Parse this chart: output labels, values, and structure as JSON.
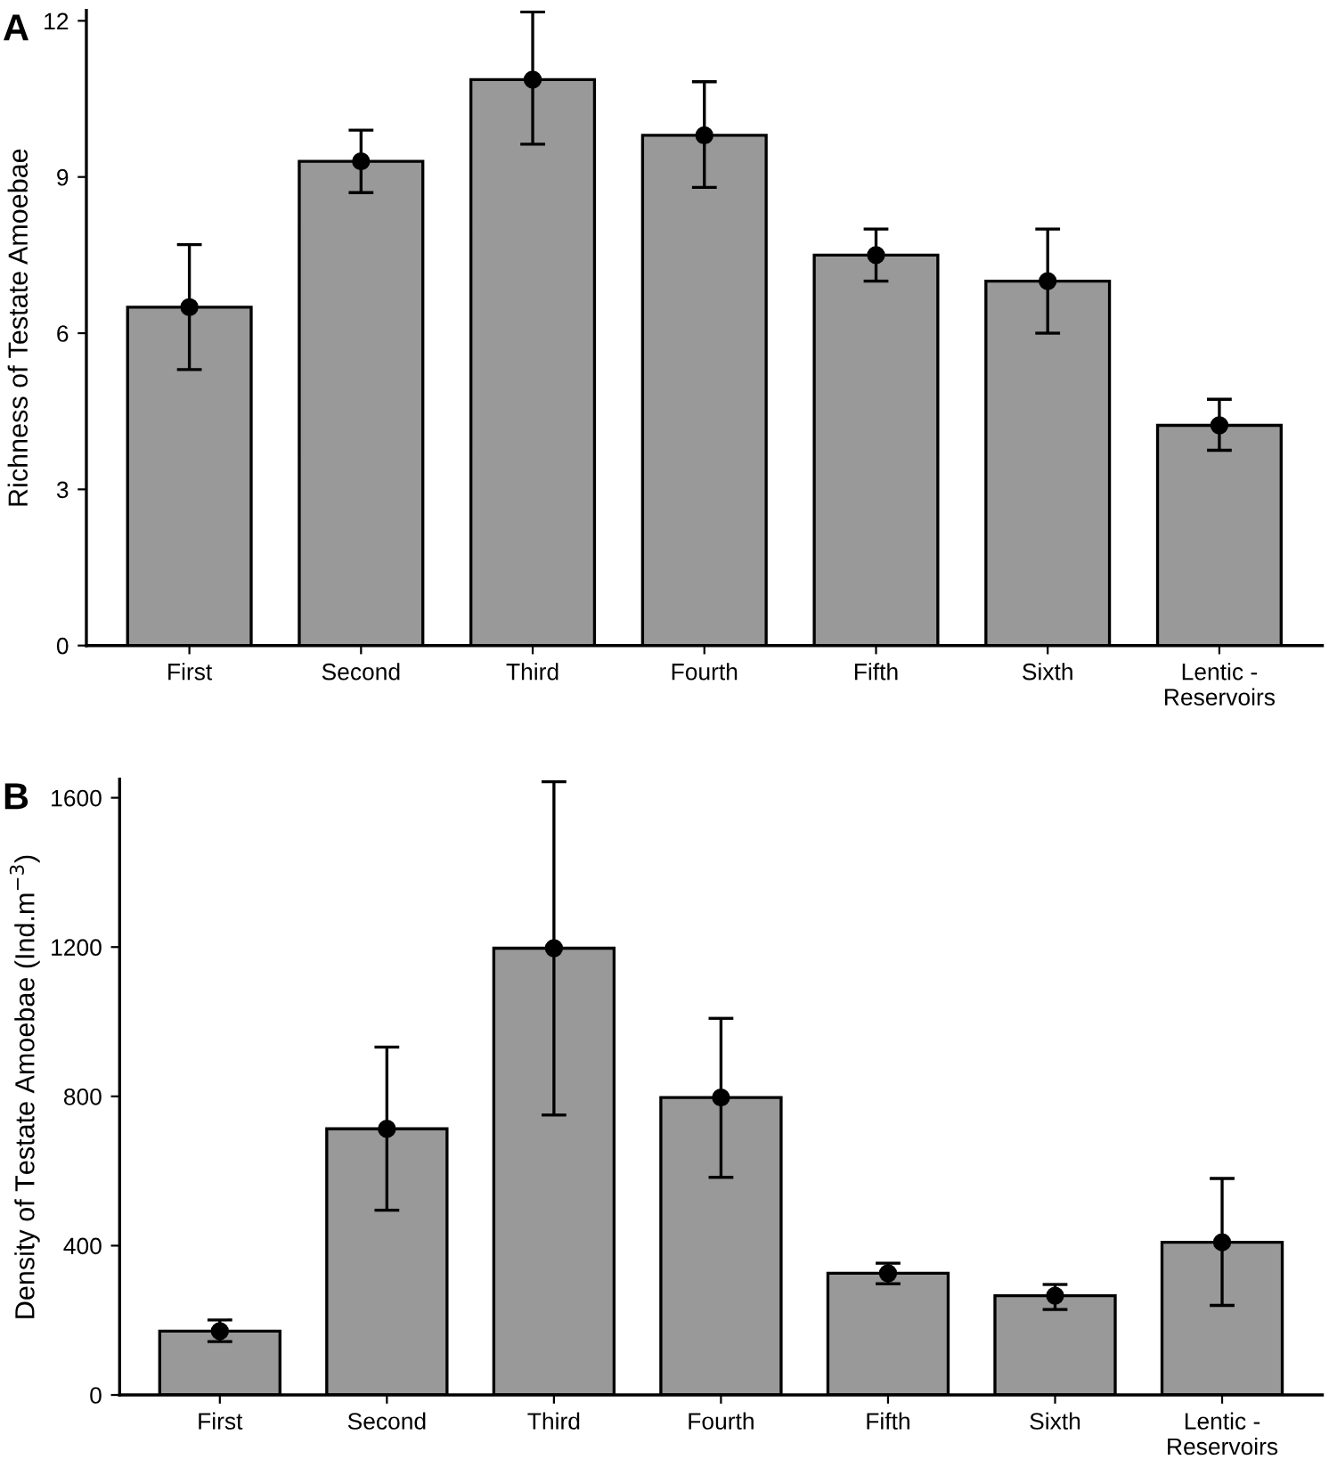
{
  "chart_data": [
    {
      "type": "bar",
      "ylabel": "Richness of Testate Amoebae",
      "annotations": [
        "A"
      ],
      "categories": [
        "First",
        "Second",
        "Third",
        "Fourth",
        "Fifth",
        "Sixth",
        "Lentic -\nReservoirs"
      ],
      "ylim": [
        0,
        12.2
      ],
      "yticks": [
        0,
        3,
        6,
        9,
        12
      ],
      "grid": false,
      "series": [
        {
          "color": "#999999",
          "values": [
            6.5,
            9.3,
            10.87,
            9.8,
            7.5,
            7.0,
            4.23
          ]
        },
        {
          "type": "scatter",
          "color": "#000000",
          "marker": "circle",
          "x": [
            "First",
            "Second",
            "Third",
            "Fourth",
            "Fifth",
            "Sixth",
            "Lentic -\nReservoirs"
          ],
          "values": [
            6.5,
            9.3,
            10.87,
            9.8,
            7.5,
            7.0,
            4.23
          ],
          "errors": [
            [
              5.3,
              7.7
            ],
            [
              8.7,
              9.9
            ],
            [
              9.63,
              12.17
            ],
            [
              8.8,
              10.83
            ],
            [
              7.0,
              8.0
            ],
            [
              6.0,
              8.0
            ],
            [
              3.75,
              4.73
            ]
          ]
        }
      ]
    },
    {
      "type": "bar",
      "ylabel": "Density of Testate Amoebae (Ind.m$^{−3}$)",
      "annotations": [
        "B"
      ],
      "categories": [
        "First",
        "Second",
        "Third",
        "Fourth",
        "Fifth",
        "Sixth",
        "Lentic -\nReservoirs"
      ],
      "ylim": [
        0,
        1650
      ],
      "yticks": [
        0,
        400,
        800,
        1200,
        1600
      ],
      "grid": false,
      "series": [
        {
          "color": "#999999",
          "values": [
            171,
            713,
            1197,
            797,
            326,
            266,
            409
          ]
        },
        {
          "type": "scatter",
          "color": "#000000",
          "marker": "circle",
          "x": [
            "First",
            "Second",
            "Third",
            "Fourth",
            "Fifth",
            "Sixth",
            "Lentic -\nReservoirs"
          ],
          "values": [
            171,
            713,
            1197,
            797,
            326,
            266,
            409
          ],
          "errors": [
            [
              143,
              201
            ],
            [
              495,
              932
            ],
            [
              750,
              1643
            ],
            [
              583,
              1009
            ],
            [
              298,
              353
            ],
            [
              229,
              296
            ],
            [
              240,
              580
            ]
          ]
        }
      ]
    }
  ]
}
